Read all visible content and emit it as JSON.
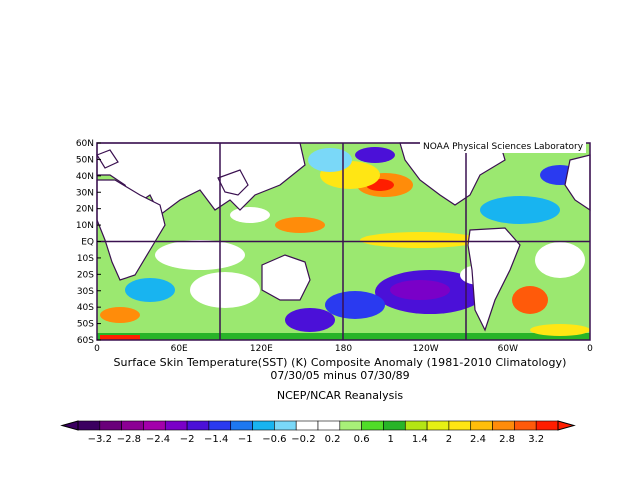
{
  "credit": "NOAA Physical Sciences Laboratory",
  "lat_labels": [
    "60N",
    "50N",
    "40N",
    "30N",
    "20N",
    "10N",
    "EQ",
    "10S",
    "20S",
    "30S",
    "40S",
    "50S",
    "60S"
  ],
  "lon_labels": [
    "0",
    "60E",
    "120E",
    "180",
    "120W",
    "60W",
    "0"
  ],
  "caption": {
    "line1": "Surface Skin Temperature(SST) (K) Composite Anomaly (1981-2010 Climatology)",
    "line2": "07/30/05 minus 07/30/89",
    "line3": "NCEP/NCAR Reanalysis"
  },
  "colorbar": {
    "labels": [
      "-3.2",
      "-2.8",
      "-2.4",
      "-2",
      "-1.4",
      "-1",
      "-0.6",
      "-0.2",
      "0.2",
      "0.6",
      "1",
      "1.4",
      "2",
      "2.4",
      "2.8",
      "3.2"
    ],
    "colors": [
      "#3b0060",
      "#6a007a",
      "#8c0094",
      "#a300ab",
      "#7a00c8",
      "#4b10d8",
      "#2a3af0",
      "#1e78f0",
      "#18b4f0",
      "#7ad8f8",
      "#ffffff",
      "#ffffff",
      "#a8f078",
      "#50dc28",
      "#28b428",
      "#b4e614",
      "#e6f014",
      "#ffe614",
      "#ffbe0a",
      "#ff8c0a",
      "#ff5a0a",
      "#ff1e00"
    ],
    "left_arrow_color": "#3b0060",
    "right_arrow_color": "#ff1e00"
  }
}
